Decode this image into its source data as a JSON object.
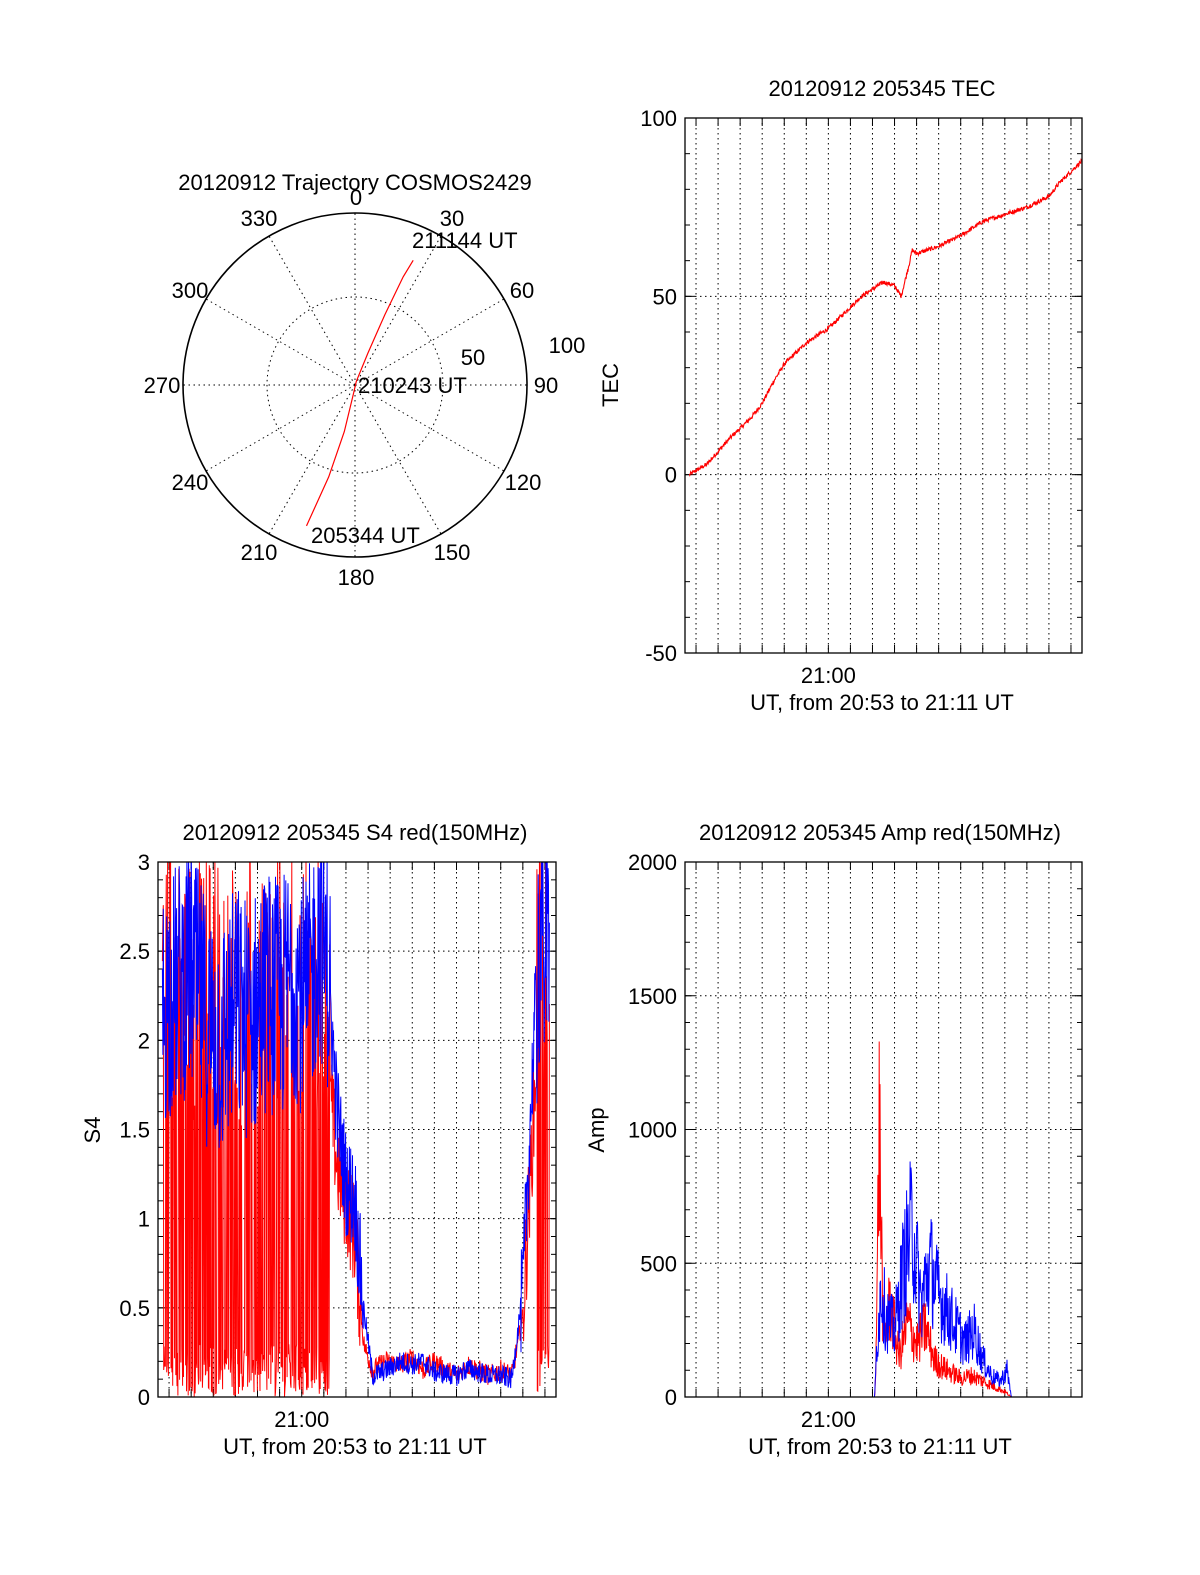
{
  "colors": {
    "red": "#ff0000",
    "blue": "#0000ff",
    "axis": "#000000"
  },
  "chart_data": [
    {
      "id": "trajectory",
      "type": "scatter",
      "title": "20120912 Trajectory COSMOS2429",
      "azimuth_labels": [
        "0",
        "30",
        "60",
        "90",
        "120",
        "150",
        "180",
        "210",
        "240",
        "270",
        "300",
        "330"
      ],
      "radial_labels": [
        "50",
        "100"
      ],
      "elevation_circles_deg": [
        0,
        50
      ],
      "grid": true,
      "series": [
        {
          "color": "#ff0000",
          "points": [
            {
              "az": 199,
              "el": 12
            },
            {
              "az": 196,
              "el": 40
            },
            {
              "az": 193,
              "el": 65
            },
            {
              "az": 190,
              "el": 85
            },
            {
              "az": 20,
              "el": 88
            },
            {
              "az": 22,
              "el": 72
            },
            {
              "az": 23,
              "el": 50
            },
            {
              "az": 24,
              "el": 28
            },
            {
              "az": 25,
              "el": 18
            }
          ]
        }
      ],
      "annotations": [
        {
          "text": "211144 UT",
          "az": 25,
          "el": 18
        },
        {
          "text": "210243 UT",
          "az": 90,
          "el": 90
        },
        {
          "text": "205344 UT",
          "az": 199,
          "el": 12
        }
      ]
    },
    {
      "id": "tec",
      "type": "line",
      "title": "20120912 205345 TEC",
      "ylabel": "TEC",
      "xlabel": "UT, from 20:53 to 21:11 UT",
      "xlim": [
        -6.5,
        11.5
      ],
      "ylim": [
        -50,
        100
      ],
      "yticks": [
        "-50",
        "0",
        "50",
        "100"
      ],
      "xtick_labels": [
        {
          "x": 0,
          "label": "21:00"
        }
      ],
      "grid": true,
      "series": [
        {
          "color": "#ff0000",
          "x": [
            -6.3,
            -5.5,
            -4.5,
            -3.5,
            -3,
            -2.5,
            -2,
            -1.5,
            -1,
            -0.5,
            0,
            0.5,
            1,
            1.5,
            2,
            2.5,
            3,
            3.3,
            3.5,
            3.7,
            3.8,
            4,
            5,
            6,
            7,
            8,
            9,
            10,
            10.5,
            11,
            11.5
          ],
          "y": [
            0,
            3,
            10,
            16,
            20,
            26,
            31,
            34,
            37,
            39,
            41,
            44,
            47,
            50,
            52,
            54,
            53,
            50,
            55,
            60,
            63,
            62,
            64,
            67,
            71,
            73,
            75,
            78,
            82,
            85,
            88
          ]
        }
      ]
    },
    {
      "id": "s4",
      "type": "line",
      "title": "20120912 205345 S4 red(150MHz)",
      "ylabel": "S4",
      "xlabel": "UT, from 20:53 to 21:11 UT",
      "xlim": [
        -6.5,
        11.5
      ],
      "ylim": [
        0,
        3
      ],
      "yticks": [
        "0",
        "0.5",
        "1",
        "1.5",
        "2",
        "2.5",
        "3"
      ],
      "xtick_labels": [
        {
          "x": 0,
          "label": "21:00"
        }
      ],
      "grid": true,
      "series": [
        {
          "color": "#ff0000",
          "x": [
            -6.3,
            -5.7,
            -5,
            -4.3,
            -3.6,
            -3,
            -2.3,
            -1.6,
            -1,
            -0.4,
            0.2,
            0.8,
            1.2,
            1.6,
            2,
            2.4,
            2.8,
            3.2,
            3.8,
            4.5,
            5,
            5.5,
            6,
            6.5,
            7,
            7.5,
            8,
            8.5,
            9,
            9.5,
            10,
            10.5,
            10.8,
            11.2
          ],
          "y": [
            2.3,
            2.1,
            1.9,
            1.8,
            2.0,
            1.8,
            1.7,
            2.0,
            1.9,
            2.1,
            1.9,
            2.2,
            1.8,
            1.3,
            1.1,
            0.9,
            0.3,
            0.15,
            0.2,
            0.18,
            0.22,
            0.15,
            0.2,
            0.15,
            0.12,
            0.18,
            0.15,
            0.12,
            0.15,
            0.12,
            0.45,
            1.6,
            2.5,
            2.7
          ]
        },
        {
          "color": "#0000ff",
          "x": [
            -6.3,
            -5.7,
            -5,
            -4.3,
            -3.6,
            -3,
            -2.3,
            -1.6,
            -1,
            -0.4,
            0.2,
            0.8,
            1.2,
            1.6,
            2,
            2.4,
            2.8,
            3.2,
            3.8,
            4.5,
            5,
            5.5,
            6,
            6.5,
            7,
            7.5,
            8,
            8.5,
            9,
            9.5,
            10,
            10.5,
            10.8,
            11.2
          ],
          "y": [
            2.2,
            2.3,
            2.4,
            2.1,
            2.0,
            2.2,
            2.1,
            2.3,
            2.2,
            2.4,
            2.2,
            2.6,
            2.4,
            1.6,
            1.2,
            1.1,
            0.5,
            0.12,
            0.15,
            0.2,
            0.18,
            0.2,
            0.14,
            0.13,
            0.12,
            0.16,
            0.14,
            0.12,
            0.12,
            0.1,
            0.6,
            2.0,
            2.6,
            2.4
          ]
        }
      ]
    },
    {
      "id": "amp",
      "type": "line",
      "title": "20120912 205345 Amp red(150MHz)",
      "ylabel": "Amp",
      "xlabel": "UT, from 20:53 to 21:11 UT",
      "xlim": [
        -6.5,
        11.5
      ],
      "ylim": [
        0,
        2000
      ],
      "yticks": [
        "0",
        "500",
        "1000",
        "1500",
        "2000"
      ],
      "xtick_labels": [
        {
          "x": 0,
          "label": "21:00"
        }
      ],
      "grid": true,
      "series": [
        {
          "color": "#ff0000",
          "x": [
            -6.3,
            0,
            2.1,
            2.2,
            2.3,
            2.5,
            2.8,
            3.2,
            3.6,
            4,
            4.4,
            4.8,
            5.2,
            5.6,
            6,
            6.5,
            7,
            7.5,
            8,
            8.3,
            11.5
          ],
          "y": [
            0,
            0,
            0,
            300,
            1040,
            200,
            350,
            150,
            280,
            200,
            260,
            140,
            110,
            90,
            70,
            80,
            60,
            40,
            20,
            0,
            0
          ]
        },
        {
          "color": "#0000ff",
          "x": [
            -6.3,
            0,
            2.1,
            2.2,
            2.4,
            2.6,
            3,
            3.4,
            3.8,
            4.2,
            4.6,
            5,
            5.4,
            5.8,
            6.2,
            6.6,
            7,
            7.4,
            7.8,
            8.1,
            8.3,
            11.5
          ],
          "y": [
            0,
            0,
            0,
            200,
            420,
            300,
            250,
            480,
            650,
            350,
            500,
            380,
            320,
            260,
            200,
            250,
            140,
            80,
            60,
            100,
            0,
            0
          ]
        }
      ]
    }
  ]
}
